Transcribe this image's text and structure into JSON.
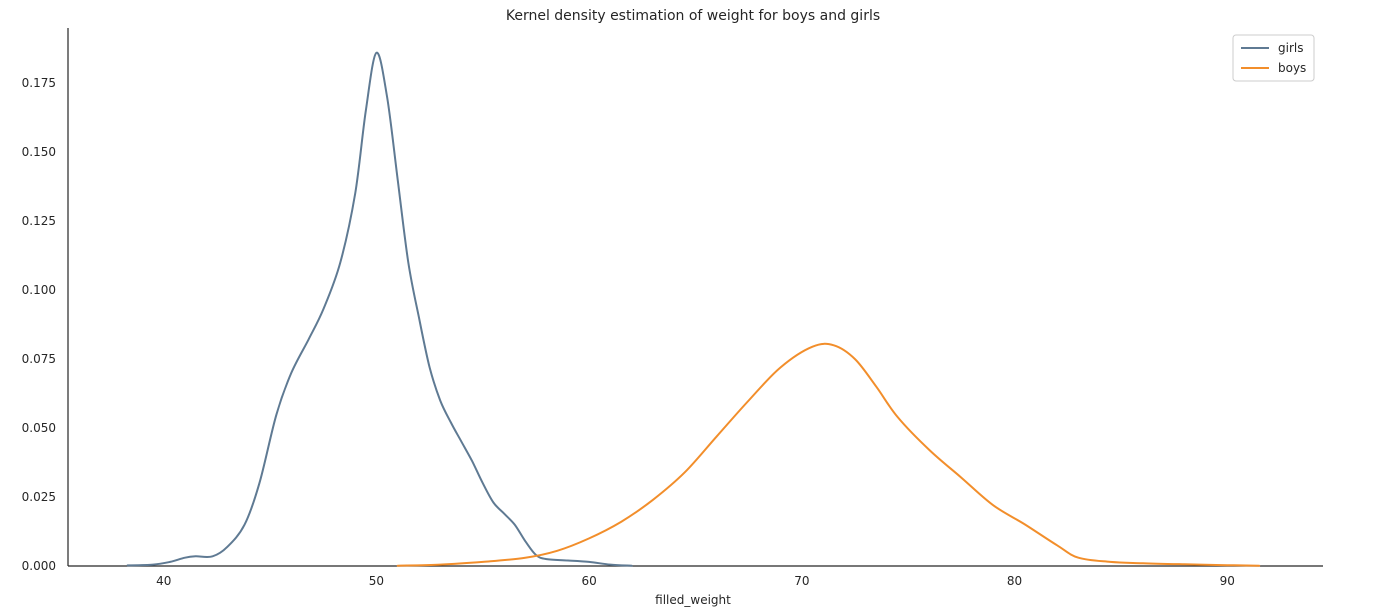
{
  "chart_data": {
    "type": "line",
    "title": "Kernel density estimation of weight for boys and girls",
    "xlabel": "filled_weight",
    "ylabel": "",
    "xlim": [
      35.5,
      94.5
    ],
    "ylim": [
      0,
      0.195
    ],
    "xticks": [
      40,
      50,
      60,
      70,
      80,
      90
    ],
    "xtick_labels": [
      "40",
      "50",
      "60",
      "70",
      "80",
      "90"
    ],
    "yticks": [
      0,
      0.025,
      0.05,
      0.075,
      0.1,
      0.125,
      0.15,
      0.175
    ],
    "ytick_labels": [
      "0.000",
      "0.025",
      "0.050",
      "0.075",
      "0.100",
      "0.125",
      "0.150",
      "0.175"
    ],
    "grid": false,
    "legend_position": "top-right",
    "series": [
      {
        "name": "girls",
        "color": "#5f7a93",
        "x": [
          38.3,
          39.5,
          40.3,
          41.0,
          41.5,
          42.3,
          43.0,
          43.8,
          44.5,
          45.3,
          46.0,
          46.8,
          47.5,
          48.3,
          49.0,
          49.5,
          50.0,
          50.5,
          51.0,
          51.5,
          52.0,
          52.5,
          53.0,
          53.5,
          54.0,
          54.5,
          55.0,
          55.5,
          56.0,
          56.5,
          57.0,
          57.5,
          58.0,
          59.0,
          60.0,
          61.0,
          62.0
        ],
        "y": [
          0.0002,
          0.0005,
          0.0015,
          0.003,
          0.0035,
          0.0035,
          0.007,
          0.015,
          0.03,
          0.055,
          0.07,
          0.082,
          0.093,
          0.11,
          0.135,
          0.165,
          0.186,
          0.17,
          0.14,
          0.11,
          0.09,
          0.072,
          0.06,
          0.052,
          0.045,
          0.038,
          0.03,
          0.023,
          0.019,
          0.015,
          0.009,
          0.004,
          0.0025,
          0.002,
          0.0015,
          0.0005,
          0.0001
        ]
      },
      {
        "name": "boys",
        "color": "#f28e2b",
        "x": [
          51.0,
          53.0,
          55.0,
          57.0,
          58.5,
          60.0,
          61.5,
          63.0,
          64.5,
          66.0,
          67.5,
          69.0,
          70.5,
          71.5,
          72.5,
          73.5,
          74.5,
          76.0,
          77.5,
          79.0,
          80.5,
          82.0,
          83.0,
          84.5,
          86.0,
          88.0,
          90.0,
          91.5
        ],
        "y": [
          0.0001,
          0.0005,
          0.0015,
          0.003,
          0.0055,
          0.01,
          0.016,
          0.024,
          0.034,
          0.047,
          0.06,
          0.072,
          0.0795,
          0.08,
          0.075,
          0.065,
          0.054,
          0.042,
          0.032,
          0.022,
          0.015,
          0.0075,
          0.003,
          0.0015,
          0.001,
          0.0006,
          0.0003,
          0.0001
        ]
      }
    ]
  }
}
